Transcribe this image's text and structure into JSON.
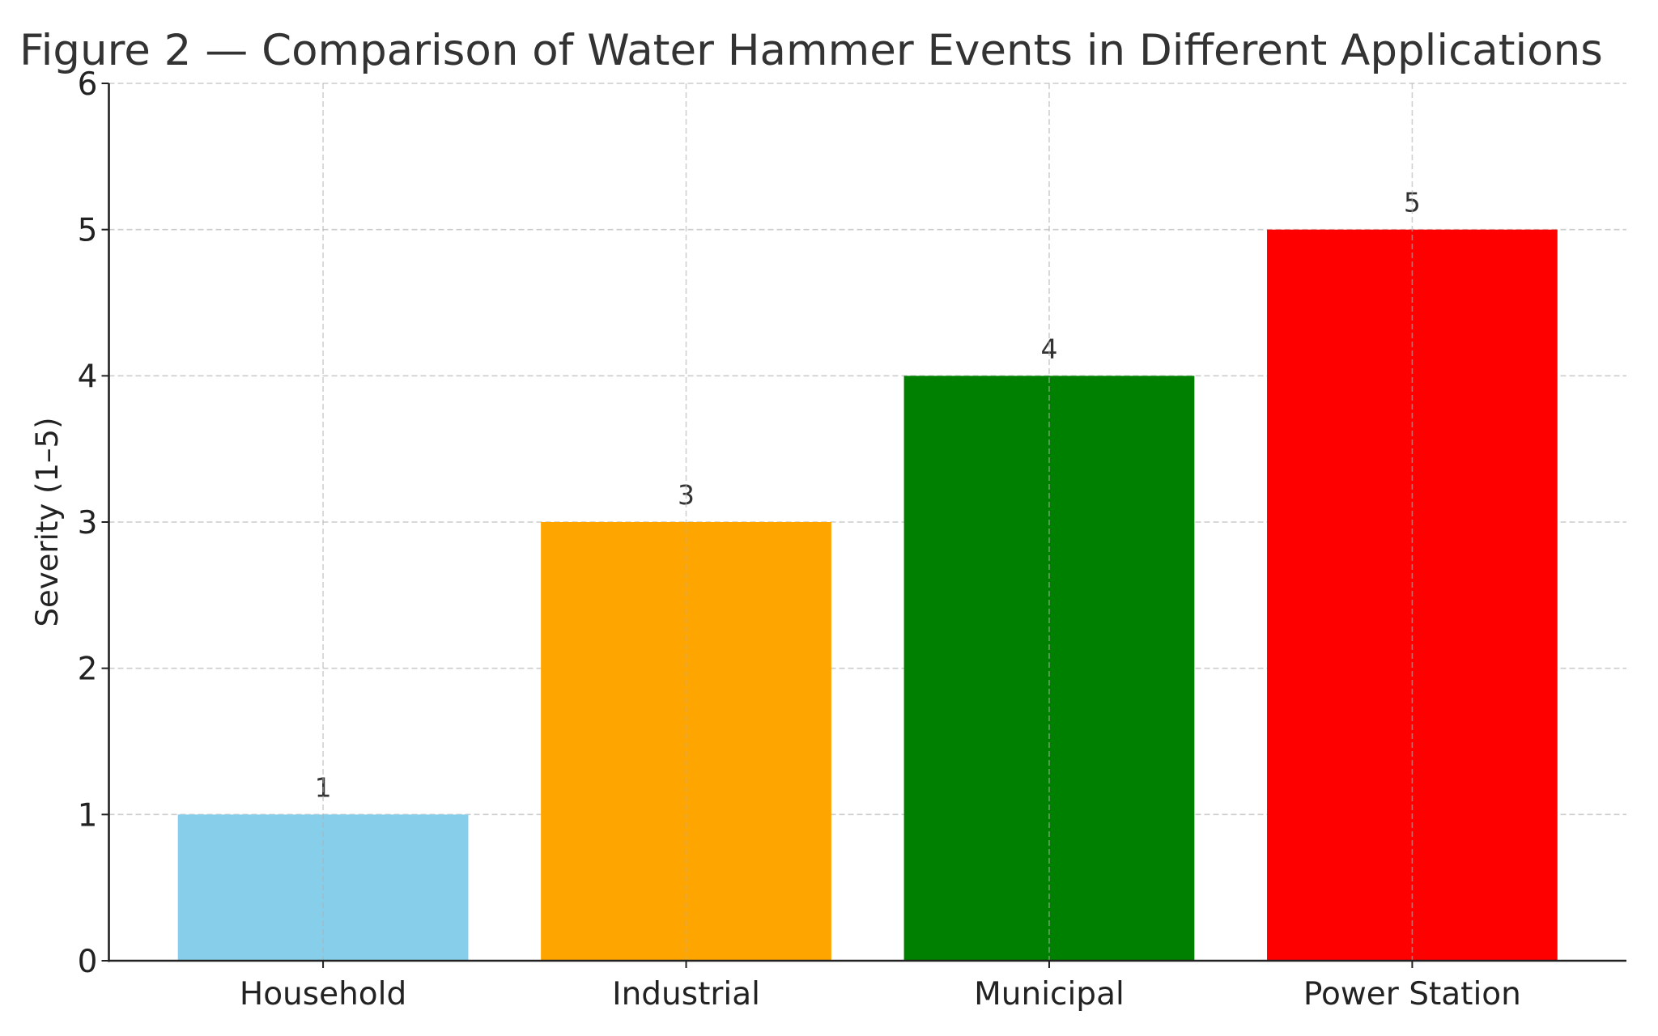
{
  "chart_data": {
    "type": "bar",
    "title": "Figure 2 — Comparison of Water Hammer Events in Different Applications",
    "xlabel": "",
    "ylabel": "Severity (1–5)",
    "categories": [
      "Household",
      "Industrial",
      "Municipal",
      "Power Station"
    ],
    "values": [
      1,
      3,
      4,
      5
    ],
    "data_labels": [
      "1",
      "3",
      "4",
      "5"
    ],
    "colors": [
      "#87CEEB",
      "#FFA500",
      "#008000",
      "#FF0000"
    ],
    "ylim": [
      0,
      6
    ],
    "yticks": [
      0,
      1,
      2,
      3,
      4,
      5,
      6
    ],
    "ytick_labels": [
      "0",
      "1",
      "2",
      "3",
      "4",
      "5",
      "6"
    ],
    "grid": true,
    "grid_style": "dashed",
    "legend": "none"
  }
}
